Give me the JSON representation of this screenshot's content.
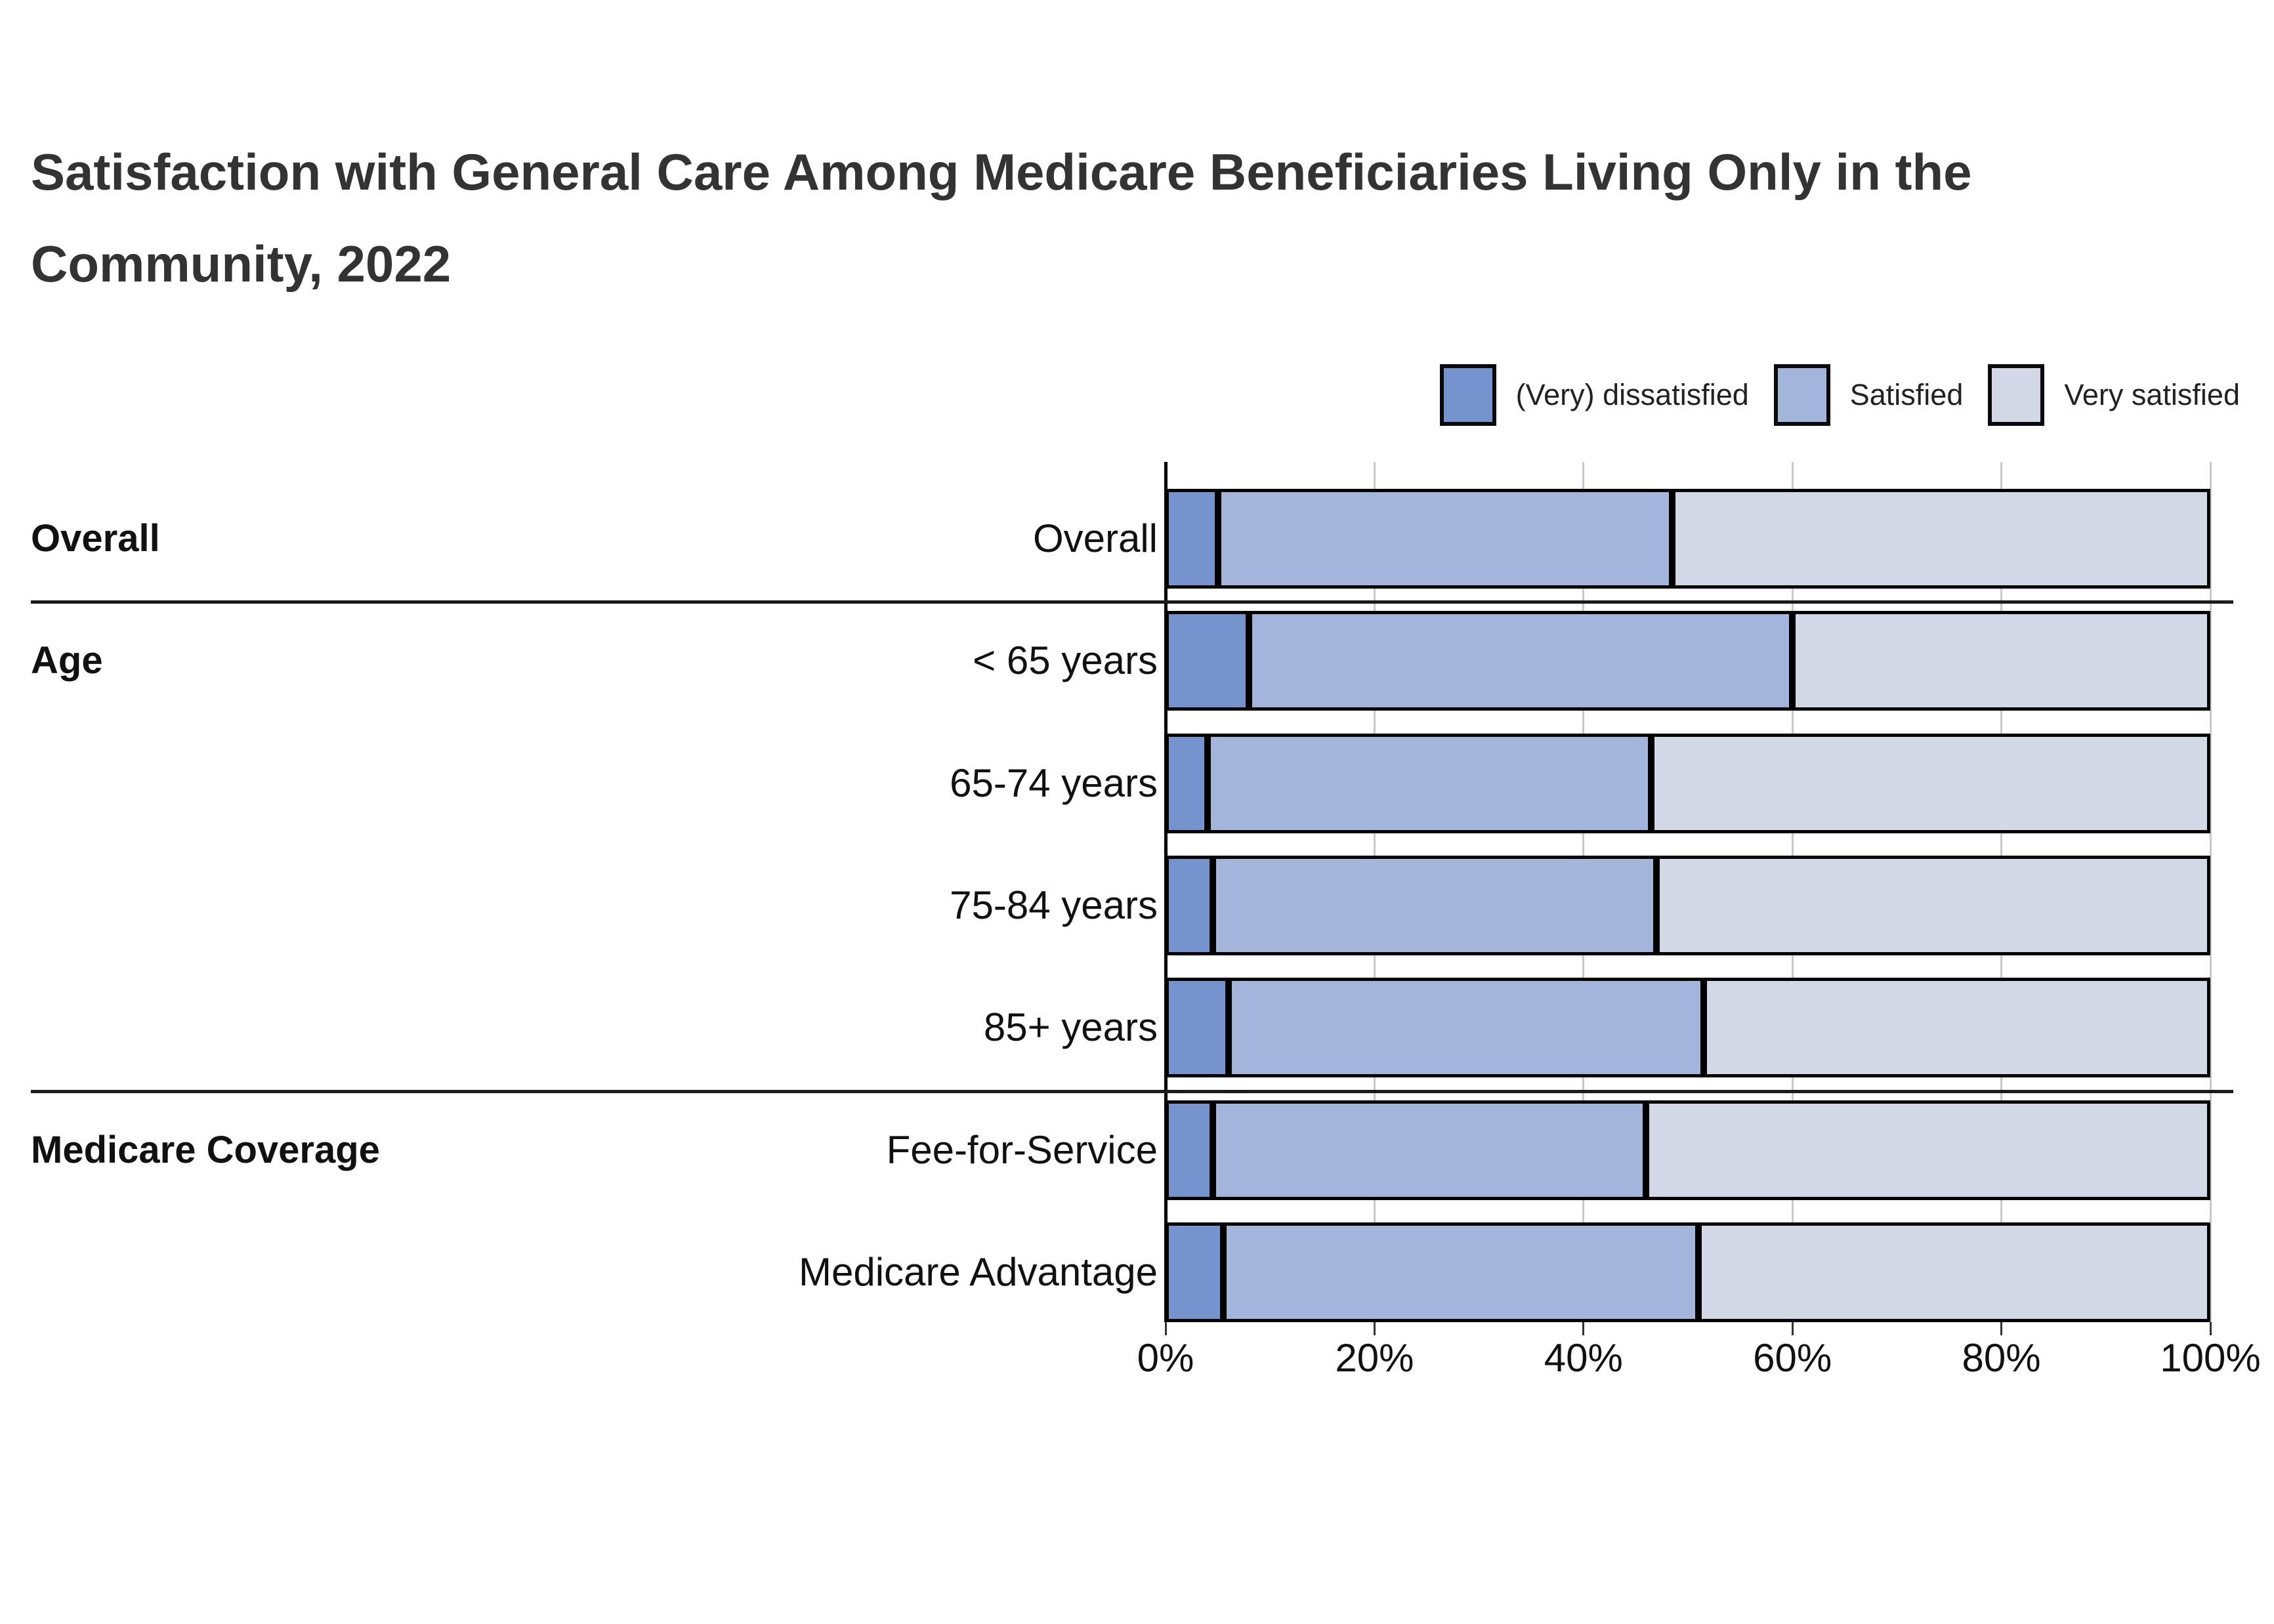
{
  "title": {
    "lines": [
      "Satisfaction with General Care Among Medicare Beneficiaries Living Only in the",
      "Community, 2022"
    ]
  },
  "legend": {
    "items": [
      {
        "label": "(Very) dissatisfied",
        "color": "#7594CD"
      },
      {
        "label": "Satisfied",
        "color": "#A3B5DB"
      },
      {
        "label": "Very satisfied",
        "color": "#D2D8E5"
      }
    ]
  },
  "chart_data": {
    "type": "bar",
    "orientation": "horizontal",
    "stacked": true,
    "unit": "percent",
    "title": "Satisfaction with General Care Among Medicare Beneficiaries Living Only in the Community, 2022",
    "categories": [
      "Overall",
      "< 65 years",
      "65-74 years",
      "75-84 years",
      "85+ years",
      "Fee-for-Service",
      "Medicare Advantage"
    ],
    "groups": [
      {
        "label": "Overall",
        "first_row": 0,
        "last_row": 0
      },
      {
        "label": "Age",
        "first_row": 1,
        "last_row": 4
      },
      {
        "label": "Medicare Coverage",
        "first_row": 5,
        "last_row": 6
      }
    ],
    "series": [
      {
        "name": "(Very) dissatisfied",
        "color": "#7594CD",
        "values": [
          5,
          8,
          4,
          4.5,
          6,
          4.5,
          5.5
        ]
      },
      {
        "name": "Satisfied",
        "color": "#A3B5DB",
        "values": [
          43.5,
          52,
          42.5,
          42.5,
          45.5,
          41.5,
          45.5
        ]
      },
      {
        "name": "Very satisfied",
        "color": "#D2D8E5",
        "values": [
          51.5,
          40,
          53.5,
          53,
          48.5,
          54,
          49
        ]
      }
    ],
    "x_axis": {
      "min": 0,
      "max": 100,
      "tick_values": [
        0,
        20,
        40,
        60,
        80,
        100
      ],
      "tick_labels": [
        "0%",
        "20%",
        "40%",
        "60%",
        "80%",
        "100%"
      ],
      "grid": true
    },
    "legend_position": "top-right"
  },
  "colors": {
    "background": "#ffffff",
    "title_text": "#333333",
    "label_text": "#111111",
    "grid": "#c9c9c9",
    "axis": "#000000",
    "bar_border": "#000000",
    "divider": "#1a1a1a"
  }
}
